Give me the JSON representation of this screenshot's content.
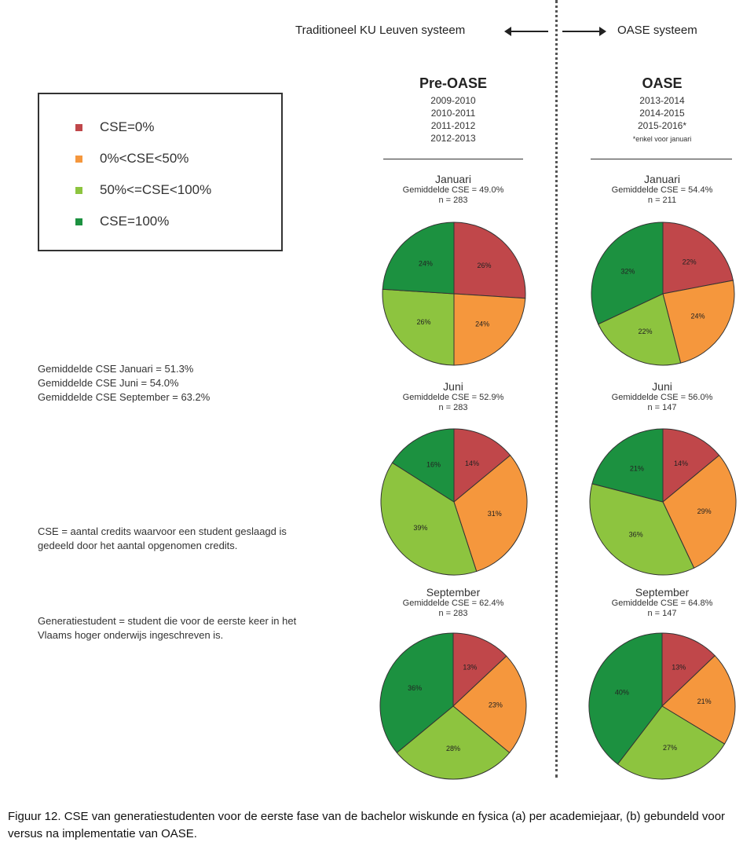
{
  "header": {
    "left_system": "Traditioneel KU Leuven systeem",
    "right_system": "OASE systeem"
  },
  "colors": {
    "cse0": "#c0474a",
    "cse_lt50": "#f5973d",
    "cse_lt100": "#8dc43f",
    "cse100": "#1c9140"
  },
  "legend": {
    "items": [
      {
        "label": "CSE=0%",
        "color": "#c0474a"
      },
      {
        "label": "0%<CSE<50%",
        "color": "#f5973d"
      },
      {
        "label": "50%<=CSE<100%",
        "color": "#8dc43f"
      },
      {
        "label": "CSE=100%",
        "color": "#1c9140"
      }
    ]
  },
  "columns": {
    "pre": {
      "title": "Pre-OASE",
      "years": [
        "2009-2010",
        "2010-2011",
        "2011-2012",
        "2012-2013"
      ],
      "note": ""
    },
    "oase": {
      "title": "OASE",
      "years": [
        "2013-2014",
        "2014-2015",
        "2015-2016*"
      ],
      "note": "*enkel voor januari"
    }
  },
  "side": {
    "averages": [
      "Gemiddelde CSE Januari = 51.3%",
      "Gemiddelde CSE Juni = 54.0%",
      "Gemiddelde CSE September = 63.2%"
    ],
    "definition_cse": "CSE = aantal credits waarvoor een student geslaagd is gedeeld door het aantal opgenomen credits.",
    "definition_student": "Generatiestudent = student die voor de eerste keer in het Vlaams hoger onderwijs ingeschreven is."
  },
  "chart_data": [
    {
      "type": "pie",
      "column": "Pre-OASE",
      "title": "Januari",
      "subtitle": "Gemiddelde CSE = 49.0%",
      "n_label": "n = 283",
      "categories": [
        "CSE=0%",
        "0%<CSE<50%",
        "50%<=CSE<100%",
        "CSE=100%"
      ],
      "values": [
        26,
        24,
        26,
        24
      ],
      "labels": [
        "26%",
        "24%",
        "26%",
        "24%"
      ]
    },
    {
      "type": "pie",
      "column": "Pre-OASE",
      "title": "Juni",
      "subtitle": "Gemiddelde CSE = 52.9%",
      "n_label": "n = 283",
      "categories": [
        "CSE=0%",
        "0%<CSE<50%",
        "50%<=CSE<100%",
        "CSE=100%"
      ],
      "values": [
        14,
        31,
        39,
        16
      ],
      "labels": [
        "14%",
        "31%",
        "39%",
        "16%"
      ]
    },
    {
      "type": "pie",
      "column": "Pre-OASE",
      "title": "September",
      "subtitle": "Gemiddelde CSE = 62.4%",
      "n_label": "n = 283",
      "categories": [
        "CSE=0%",
        "0%<CSE<50%",
        "50%<=CSE<100%",
        "CSE=100%"
      ],
      "values": [
        13,
        23,
        28,
        36
      ],
      "labels": [
        "13%",
        "23%",
        "28%",
        "36%"
      ]
    },
    {
      "type": "pie",
      "column": "OASE",
      "title": "Januari",
      "subtitle": "Gemiddelde CSE = 54.4%",
      "n_label": "n = 211",
      "categories": [
        "CSE=0%",
        "0%<CSE<50%",
        "50%<=CSE<100%",
        "CSE=100%"
      ],
      "values": [
        22,
        24,
        22,
        32
      ],
      "labels": [
        "22%",
        "24%",
        "22%",
        "32%"
      ]
    },
    {
      "type": "pie",
      "column": "OASE",
      "title": "Juni",
      "subtitle": "Gemiddelde CSE = 56.0%",
      "n_label": "n = 147",
      "categories": [
        "CSE=0%",
        "0%<CSE<50%",
        "50%<=CSE<100%",
        "CSE=100%"
      ],
      "values": [
        14,
        29,
        36,
        21
      ],
      "labels": [
        "14%",
        "29%",
        "36%",
        "21%"
      ]
    },
    {
      "type": "pie",
      "column": "OASE",
      "title": "September",
      "subtitle": "Gemiddelde CSE = 64.8%",
      "n_label": "n = 147",
      "categories": [
        "CSE=0%",
        "0%<CSE<50%",
        "50%<=CSE<100%",
        "CSE=100%"
      ],
      "values": [
        13,
        21,
        27,
        40
      ],
      "labels": [
        "13%",
        "21%",
        "27%",
        "40%"
      ]
    }
  ],
  "caption": "Figuur 12. CSE van generatiestudenten voor de eerste fase van de bachelor wiskunde en fysica (a) per academiejaar, (b) gebundeld voor versus na implementatie van OASE."
}
